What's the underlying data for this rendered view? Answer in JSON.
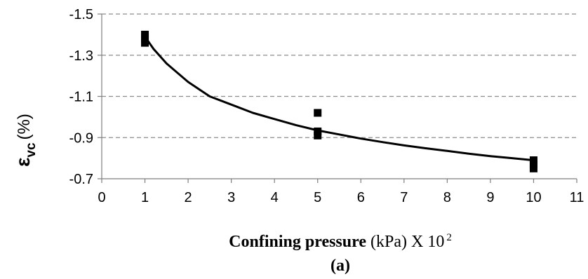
{
  "chart_data": {
    "type": "scatter",
    "ylabel": {
      "symbol": "ε",
      "subscript": "vc",
      "unit": "(%)"
    },
    "xlabel": {
      "bold": "Confining pressure",
      "unit": " (kPa) X 10",
      "superscript": "2"
    },
    "sublabel": "(a)",
    "xlim": [
      0,
      11
    ],
    "ylim": [
      -0.7,
      -1.5
    ],
    "y_inverted": true,
    "x_ticks": [
      "0",
      "1",
      "2",
      "3",
      "4",
      "5",
      "6",
      "7",
      "8",
      "9",
      "10",
      "11"
    ],
    "y_ticks": [
      "-0.7",
      "-0.9",
      "-1.1",
      "-1.3",
      "-1.5"
    ],
    "y_tick_values": [
      -0.7,
      -0.9,
      -1.1,
      -1.3,
      -1.5
    ],
    "grid": "horizontal-dashed",
    "series": [
      {
        "kind": "points",
        "marker": "square",
        "color": "#000000",
        "x": [
          1,
          1,
          1,
          5,
          5,
          5,
          10,
          10,
          10
        ],
        "y": [
          -1.4,
          -1.38,
          -1.36,
          -1.02,
          -0.93,
          -0.91,
          -0.79,
          -0.77,
          -0.75
        ]
      },
      {
        "kind": "trend",
        "color": "#000000",
        "x": [
          1.0,
          1.2,
          1.5,
          2.0,
          2.5,
          3.0,
          3.5,
          4.0,
          4.5,
          5.0,
          5.5,
          6.0,
          6.5,
          7.0,
          7.5,
          8.0,
          8.5,
          9.0,
          9.5,
          10.0
        ],
        "y": [
          -1.39,
          -1.33,
          -1.26,
          -1.17,
          -1.1,
          -1.06,
          -1.02,
          -0.99,
          -0.96,
          -0.935,
          -0.915,
          -0.895,
          -0.878,
          -0.862,
          -0.848,
          -0.835,
          -0.822,
          -0.81,
          -0.8,
          -0.79
        ]
      }
    ]
  }
}
